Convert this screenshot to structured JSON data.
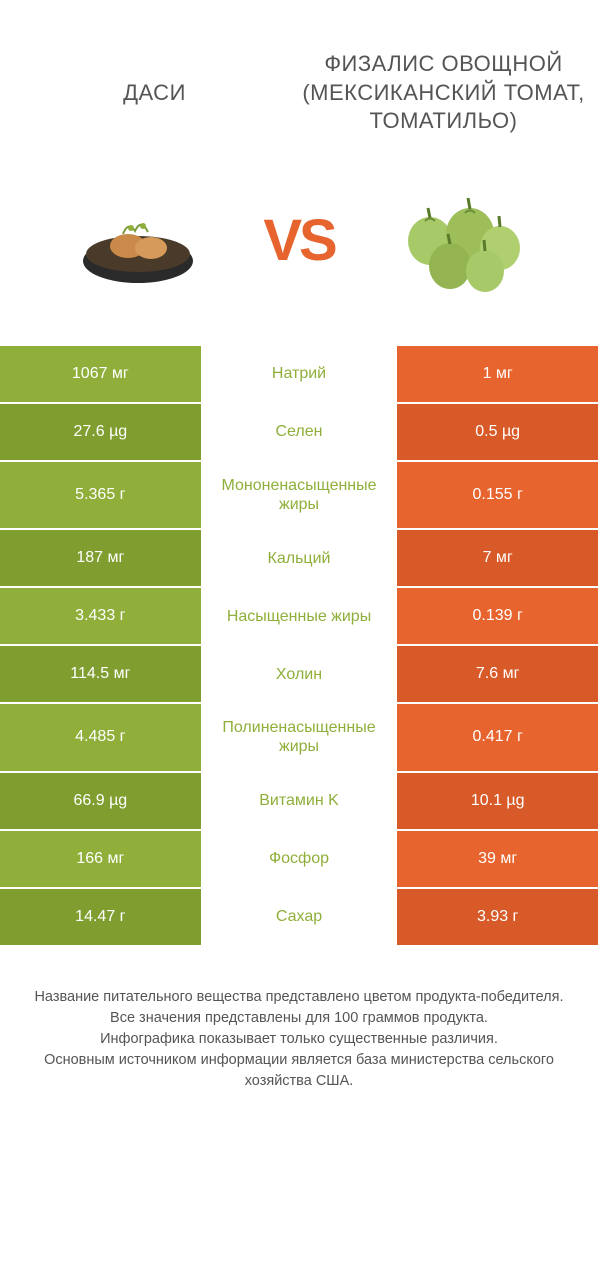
{
  "colors": {
    "green": "#8faf3a",
    "green_dark": "#7f9e2f",
    "orange": "#e8642f",
    "orange_dark": "#d85a28",
    "mid_bg": "#ffffff",
    "text_gray": "#555555"
  },
  "header": {
    "left": "ДАСИ",
    "right": "ФИЗАЛИС ОВОЩНОЙ (МЕКСИКАНСКИЙ ТОМАТ, ТОМАТИЛЬО)"
  },
  "vs_label": "VS",
  "rows": [
    {
      "left": "1067 мг",
      "mid": "Натрий",
      "right": "1 мг",
      "winner": "left"
    },
    {
      "left": "27.6 µg",
      "mid": "Селен",
      "right": "0.5 µg",
      "winner": "left"
    },
    {
      "left": "5.365 г",
      "mid": "Мононенасыщенные жиры",
      "right": "0.155 г",
      "winner": "left"
    },
    {
      "left": "187 мг",
      "mid": "Кальций",
      "right": "7 мг",
      "winner": "left"
    },
    {
      "left": "3.433 г",
      "mid": "Насыщенные жиры",
      "right": "0.139 г",
      "winner": "left"
    },
    {
      "left": "114.5 мг",
      "mid": "Холин",
      "right": "7.6 мг",
      "winner": "left"
    },
    {
      "left": "4.485 г",
      "mid": "Полиненасыщенные жиры",
      "right": "0.417 г",
      "winner": "left"
    },
    {
      "left": "66.9 µg",
      "mid": "Витамин K",
      "right": "10.1 µg",
      "winner": "left"
    },
    {
      "left": "166 мг",
      "mid": "Фосфор",
      "right": "39 мг",
      "winner": "left"
    },
    {
      "left": "14.47 г",
      "mid": "Сахар",
      "right": "3.93 г",
      "winner": "left"
    }
  ],
  "footnote": "Название питательного вещества представлено цветом продукта-победителя.\nВсе значения представлены для 100 граммов продукта.\nИнфографика показывает только существенные различия.\nОсновным источником информации является база министерства сельского хозяйства США."
}
